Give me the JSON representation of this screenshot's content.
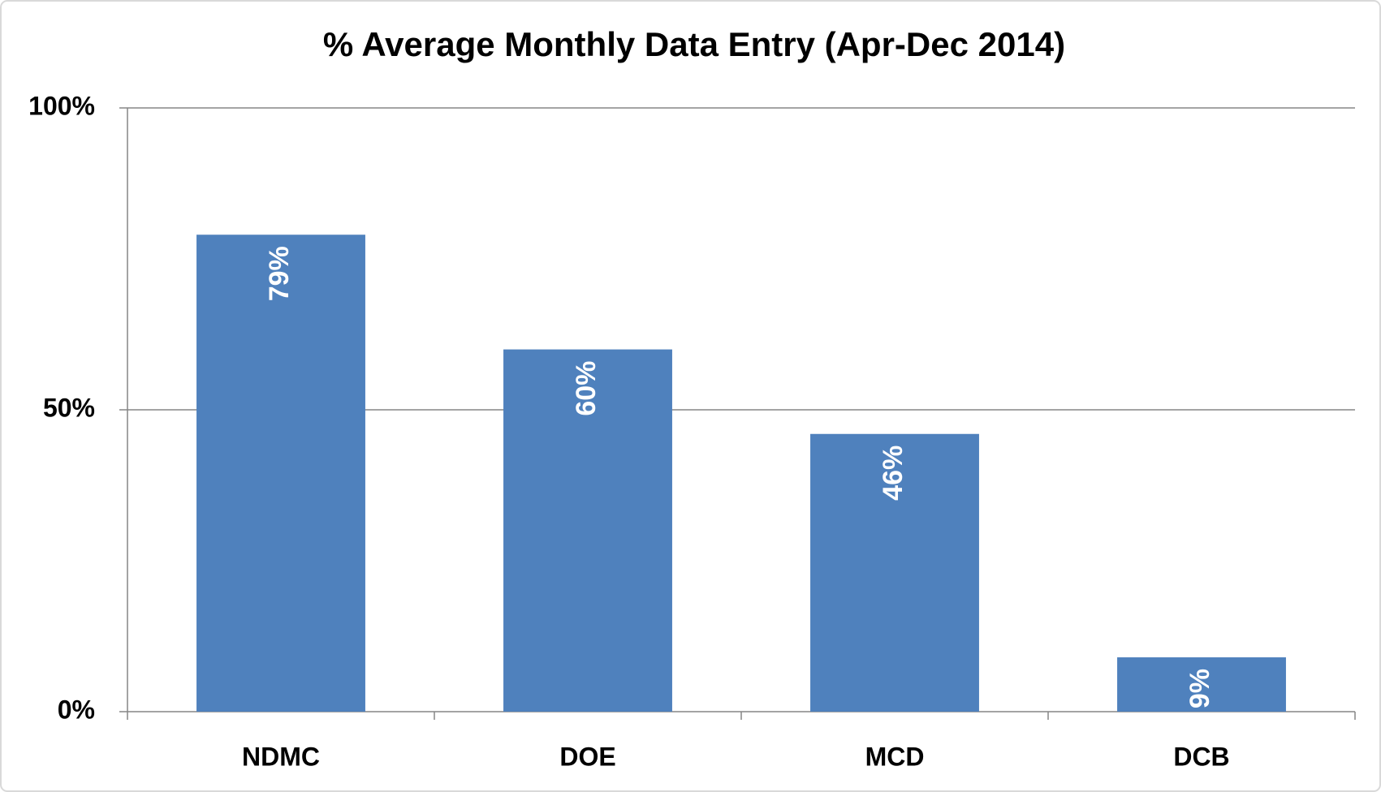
{
  "chart_data": {
    "type": "bar",
    "title": "% Average Monthly Data Entry (Apr-Dec 2014)",
    "categories": [
      "NDMC",
      "DOE",
      "MCD",
      "DCB"
    ],
    "values": [
      79,
      60,
      46,
      9
    ],
    "value_labels": [
      "79%",
      "60%",
      "46%",
      "9%"
    ],
    "color": "#4f81bd",
    "ylim": [
      0,
      100
    ],
    "yticks": [
      {
        "value": 0,
        "label": "0%"
      },
      {
        "value": 50,
        "label": "50%"
      },
      {
        "value": 100,
        "label": "100%"
      }
    ],
    "grid": true
  }
}
